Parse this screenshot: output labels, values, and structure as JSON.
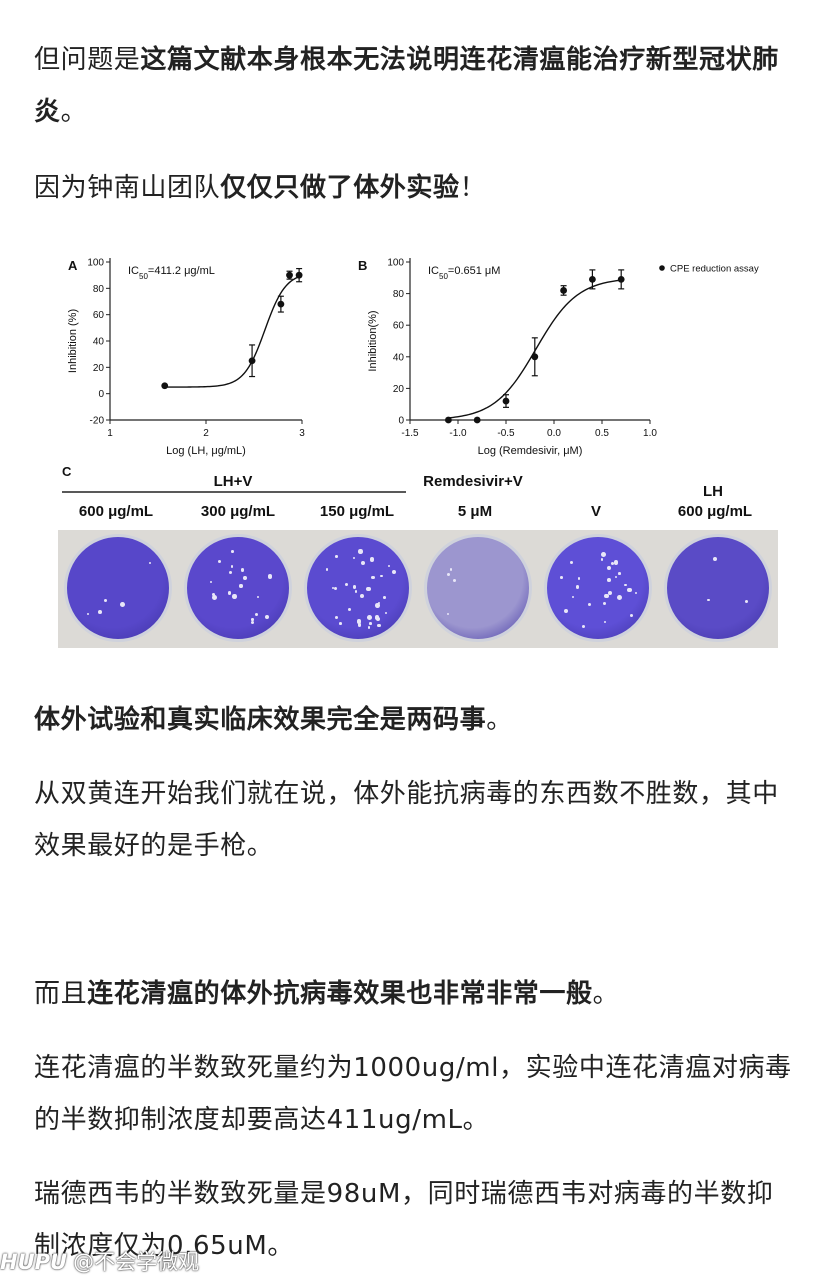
{
  "paragraphs": {
    "p1": {
      "plain": "但问题是",
      "bold": "这篇文献本身根本无法说明连花清瘟能治疗新型冠状肺炎",
      "tail": "。"
    },
    "p2": {
      "plain": "因为钟南山团队",
      "bold": "仅仅只做了体外实验",
      "tail": "！"
    },
    "p3": {
      "bold": "体外试验和真实临床效果完全是两码事",
      "tail": "。"
    },
    "p4": {
      "text": "从双黄连开始我们就在说，体外能抗病毒的东西数不胜数，其中效果最好的是手枪。"
    },
    "p5": {
      "plain": "而且",
      "bold": "连花清瘟的体外抗病毒效果也非常非常一般",
      "tail": "。"
    },
    "p6": {
      "text": "连花清瘟的半数致死量约为1000ug/ml，实验中连花清瘟对病毒的半数抑制浓度却要高达411ug/mL。"
    },
    "p7": {
      "text": "瑞德西韦的半数致死量是98uM，同时瑞德西韦对病毒的半数抑制浓度仅为0.65uM。"
    }
  },
  "figure": {
    "panel_c": {
      "letter": "C",
      "group_lhv": "LH+V",
      "group_rem": "Remdesivir+V",
      "group_lh": "LH",
      "conditions": [
        "600 μg/mL",
        "300 μg/mL",
        "150 μg/mL",
        "5 μM",
        "V",
        "600 μg/mL"
      ]
    }
  },
  "chart_data": [
    {
      "type": "scatter",
      "panel_letter": "A",
      "annotation": "IC50=411.2 μg/mL",
      "xlabel": "Log (LH, μg/mL)",
      "ylabel": "Inhibition (%)",
      "xlim": [
        1,
        3
      ],
      "ylim": [
        -20,
        100
      ],
      "xticks": [
        "1",
        "2",
        "3"
      ],
      "yticks": [
        "-20",
        "0",
        "20",
        "40",
        "60",
        "80",
        "100"
      ],
      "x": [
        1.57,
        2.48,
        2.78,
        2.87,
        2.97
      ],
      "y": [
        6,
        25,
        68,
        90,
        90
      ],
      "err": [
        0,
        12,
        6,
        3,
        5
      ],
      "fit": {
        "model": "sigmoid",
        "bottom": 5,
        "top": 92,
        "logIC50": 2.614,
        "hill": 4
      }
    },
    {
      "type": "scatter",
      "panel_letter": "B",
      "annotation": "IC50=0.651 μM",
      "legend": "CPE reduction assay",
      "legend_position": "top-right",
      "xlabel": "Log (Remdesivir, μM)",
      "ylabel": "Inhibition(%)",
      "xlim": [
        -1.5,
        1.0
      ],
      "ylim": [
        0,
        100
      ],
      "xticks": [
        "-1.5",
        "-1.0",
        "-0.5",
        "0.0",
        "0.5",
        "1.0"
      ],
      "yticks": [
        "0",
        "20",
        "40",
        "60",
        "80",
        "100"
      ],
      "x": [
        -1.1,
        -0.8,
        -0.5,
        -0.2,
        0.1,
        0.4,
        0.7
      ],
      "y": [
        0,
        0,
        12,
        40,
        82,
        89,
        89
      ],
      "err": [
        0,
        0,
        4,
        12,
        3,
        6,
        6
      ],
      "fit": {
        "model": "sigmoid",
        "bottom": 0,
        "top": 90,
        "logIC50": -0.187,
        "hill": 2
      }
    }
  ],
  "plates": [
    {
      "color": "#5747c9",
      "spots": 5
    },
    {
      "color": "#5a48cc",
      "spots": 18
    },
    {
      "color": "#5b4bd0",
      "spots": 32
    },
    {
      "color": "#9c96cf",
      "spots": 4
    },
    {
      "color": "#5e4fd6",
      "spots": 26
    },
    {
      "color": "#5a4bc6",
      "spots": 3
    }
  ],
  "watermark": {
    "brand": "HUPU",
    "text": "@不会学微观"
  }
}
